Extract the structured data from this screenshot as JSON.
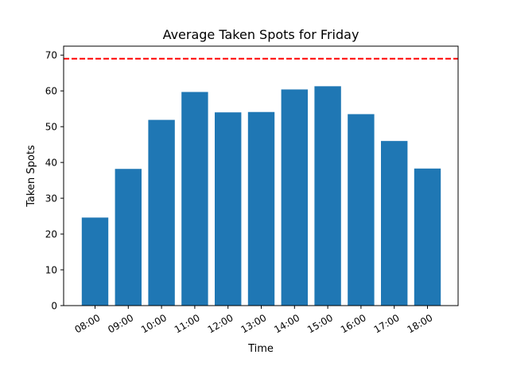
{
  "chart_data": {
    "type": "bar",
    "title": "Average Taken Spots for Friday",
    "xlabel": "Time",
    "ylabel": "Taken Spots",
    "categories": [
      "08:00",
      "09:00",
      "10:00",
      "11:00",
      "12:00",
      "13:00",
      "14:00",
      "15:00",
      "16:00",
      "17:00",
      "18:00"
    ],
    "values": [
      24.6,
      38.2,
      51.9,
      59.7,
      54.0,
      54.1,
      60.4,
      61.3,
      53.5,
      46.0,
      38.3
    ],
    "ylim": [
      0,
      72.5
    ],
    "yticks": [
      "0",
      "10",
      "20",
      "30",
      "40",
      "50",
      "60",
      "70"
    ],
    "reference_line": {
      "value": 69,
      "style": "dashed"
    },
    "colors": {
      "bar": "#1f77b4",
      "reference_line": "#ff0000"
    },
    "grid": false
  }
}
